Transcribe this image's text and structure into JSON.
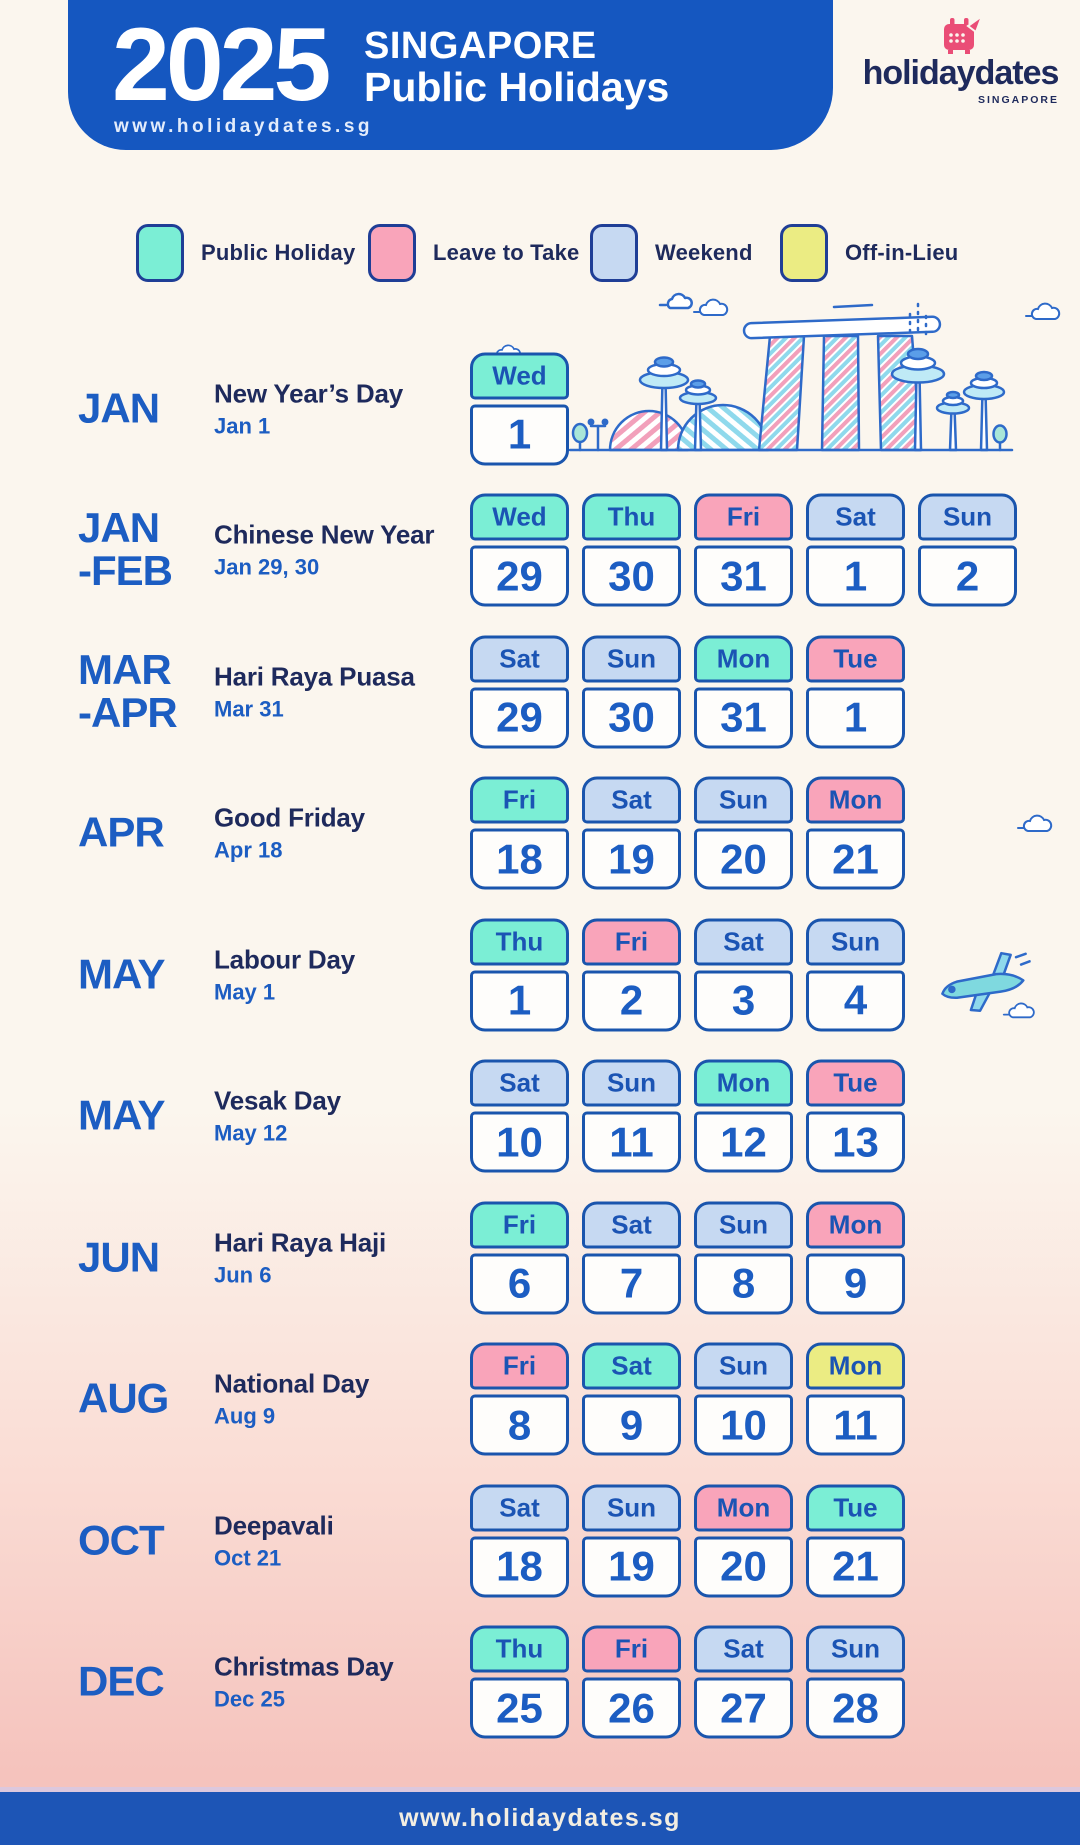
{
  "header": {
    "year": "2025",
    "title_line1": "SINGAPORE",
    "title_line2": "Public Holidays",
    "website": "www.holidaydates.sg"
  },
  "logo": {
    "name": "holidaydates",
    "region": "SINGAPORE"
  },
  "legend": {
    "items": [
      {
        "label": "Public Holiday",
        "type": "holiday"
      },
      {
        "label": "Leave to Take",
        "type": "leave"
      },
      {
        "label": "Weekend",
        "type": "weekend"
      },
      {
        "label": "Off-in-Lieu",
        "type": "lieu"
      }
    ]
  },
  "colors": {
    "banner": "#1557c0",
    "footer": "#1d55b6",
    "accent": "#1c5dc2",
    "navy": "#1e2a5c",
    "cardborder": "#1a55ad",
    "holiday": "#7beed5",
    "leave": "#f9a4ba",
    "weekend": "#c6d9f2",
    "lieu": "#ebec83"
  },
  "rows": [
    {
      "month": "JAN",
      "month2": "",
      "name": "New Year’s Day",
      "date": "Jan 1",
      "days": [
        {
          "dow": "Wed",
          "num": "1",
          "type": "holiday"
        }
      ]
    },
    {
      "month": "JAN",
      "month2": "-FEB",
      "name": "Chinese New Year",
      "date": "Jan 29, 30",
      "days": [
        {
          "dow": "Wed",
          "num": "29",
          "type": "holiday"
        },
        {
          "dow": "Thu",
          "num": "30",
          "type": "holiday"
        },
        {
          "dow": "Fri",
          "num": "31",
          "type": "leave"
        },
        {
          "dow": "Sat",
          "num": "1",
          "type": "weekend"
        },
        {
          "dow": "Sun",
          "num": "2",
          "type": "weekend"
        }
      ]
    },
    {
      "month": "MAR",
      "month2": "-APR",
      "name": "Hari Raya Puasa",
      "date": "Mar 31",
      "days": [
        {
          "dow": "Sat",
          "num": "29",
          "type": "weekend"
        },
        {
          "dow": "Sun",
          "num": "30",
          "type": "weekend"
        },
        {
          "dow": "Mon",
          "num": "31",
          "type": "holiday"
        },
        {
          "dow": "Tue",
          "num": "1",
          "type": "leave"
        }
      ]
    },
    {
      "month": "APR",
      "month2": "",
      "name": "Good Friday",
      "date": "Apr 18",
      "days": [
        {
          "dow": "Fri",
          "num": "18",
          "type": "holiday"
        },
        {
          "dow": "Sat",
          "num": "19",
          "type": "weekend"
        },
        {
          "dow": "Sun",
          "num": "20",
          "type": "weekend"
        },
        {
          "dow": "Mon",
          "num": "21",
          "type": "leave"
        }
      ]
    },
    {
      "month": "MAY",
      "month2": "",
      "name": "Labour Day",
      "date": "May 1",
      "days": [
        {
          "dow": "Thu",
          "num": "1",
          "type": "holiday"
        },
        {
          "dow": "Fri",
          "num": "2",
          "type": "leave"
        },
        {
          "dow": "Sat",
          "num": "3",
          "type": "weekend"
        },
        {
          "dow": "Sun",
          "num": "4",
          "type": "weekend"
        }
      ]
    },
    {
      "month": "MAY",
      "month2": "",
      "name": "Vesak Day",
      "date": "May 12",
      "days": [
        {
          "dow": "Sat",
          "num": "10",
          "type": "weekend"
        },
        {
          "dow": "Sun",
          "num": "11",
          "type": "weekend"
        },
        {
          "dow": "Mon",
          "num": "12",
          "type": "holiday"
        },
        {
          "dow": "Tue",
          "num": "13",
          "type": "leave"
        }
      ]
    },
    {
      "month": "JUN",
      "month2": "",
      "name": "Hari Raya Haji",
      "date": "Jun 6",
      "days": [
        {
          "dow": "Fri",
          "num": "6",
          "type": "holiday"
        },
        {
          "dow": "Sat",
          "num": "7",
          "type": "weekend"
        },
        {
          "dow": "Sun",
          "num": "8",
          "type": "weekend"
        },
        {
          "dow": "Mon",
          "num": "9",
          "type": "leave"
        }
      ]
    },
    {
      "month": "AUG",
      "month2": "",
      "name": "National Day",
      "date": "Aug 9",
      "days": [
        {
          "dow": "Fri",
          "num": "8",
          "type": "leave"
        },
        {
          "dow": "Sat",
          "num": "9",
          "type": "holiday"
        },
        {
          "dow": "Sun",
          "num": "10",
          "type": "weekend"
        },
        {
          "dow": "Mon",
          "num": "11",
          "type": "lieu"
        }
      ]
    },
    {
      "month": "OCT",
      "month2": "",
      "name": "Deepavali",
      "date": "Oct 21",
      "days": [
        {
          "dow": "Sat",
          "num": "18",
          "type": "weekend"
        },
        {
          "dow": "Sun",
          "num": "19",
          "type": "weekend"
        },
        {
          "dow": "Mon",
          "num": "20",
          "type": "leave"
        },
        {
          "dow": "Tue",
          "num": "21",
          "type": "holiday"
        }
      ]
    },
    {
      "month": "DEC",
      "month2": "",
      "name": "Christmas Day",
      "date": "Dec 25",
      "days": [
        {
          "dow": "Thu",
          "num": "25",
          "type": "holiday"
        },
        {
          "dow": "Fri",
          "num": "26",
          "type": "leave"
        },
        {
          "dow": "Sat",
          "num": "27",
          "type": "weekend"
        },
        {
          "dow": "Sun",
          "num": "28",
          "type": "weekend"
        }
      ]
    }
  ],
  "footer": {
    "website": "www.holidaydates.sg"
  }
}
